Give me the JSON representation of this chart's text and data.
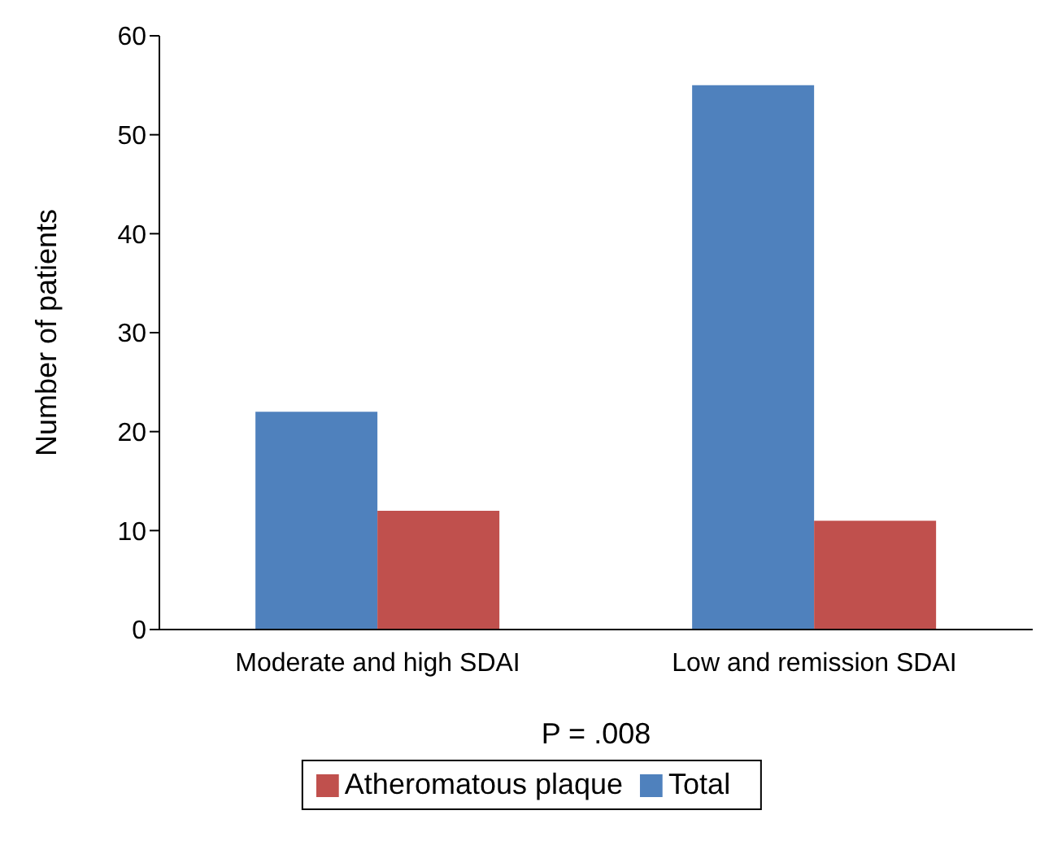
{
  "chart_data": {
    "type": "bar",
    "ylabel": "Number of patients",
    "xlabel": "P = .008",
    "categories": [
      "Moderate and high SDAI",
      "Low and remission SDAI"
    ],
    "series": [
      {
        "name": "Total",
        "color": "#4f81bd",
        "values": [
          22,
          55
        ]
      },
      {
        "name": "Atheromatous plaque",
        "color": "#c0504d",
        "values": [
          12,
          11
        ]
      }
    ],
    "ylim": [
      0,
      60
    ],
    "yticks": [
      0,
      10,
      20,
      30,
      40,
      50,
      60
    ],
    "grid": false,
    "legend": "bottom"
  }
}
